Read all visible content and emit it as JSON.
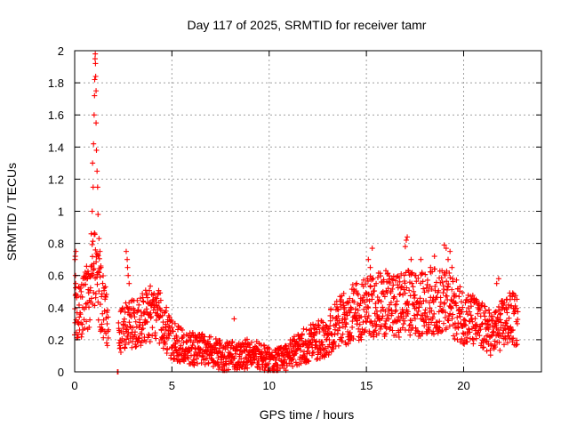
{
  "chart_data": {
    "type": "scatter",
    "title": "Day 117 of 2025, SRMTID for receiver tamr",
    "xlabel": "GPS time / hours",
    "ylabel": "SRMTID / TECUs",
    "xlim": [
      0,
      24
    ],
    "ylim": [
      0,
      2
    ],
    "grid": true,
    "legend": "none",
    "xticks": [
      0,
      5,
      10,
      15,
      20
    ],
    "xtick_labels": [
      "0",
      "5",
      "10",
      "15",
      "20"
    ],
    "yticks": [
      0,
      0.2,
      0.4,
      0.6,
      0.8,
      1,
      1.2,
      1.4,
      1.6,
      1.8,
      2
    ],
    "ytick_labels": [
      "0",
      "0.2",
      "0.4",
      "0.6",
      "0.8",
      "1",
      "1.2",
      "1.4",
      "1.6",
      "1.8",
      "2"
    ],
    "series": [
      {
        "name": "SRMTID",
        "color": "#ff0000",
        "marker": "plus",
        "profile_x": [
          0,
          0.3,
          0.7,
          1.0,
          1.3,
          1.7,
          2.3,
          2.8,
          3.4,
          4.0,
          4.5,
          5.0,
          6.0,
          7.0,
          7.7,
          8.3,
          9.0,
          9.7,
          10.2,
          10.8,
          11.5,
          12.3,
          13.0,
          13.5,
          14.0,
          14.5,
          15.0,
          15.5,
          16.0,
          16.5,
          17.0,
          17.5,
          18.0,
          18.5,
          19.0,
          19.5,
          20.0,
          20.5,
          21.0,
          21.5,
          22.0,
          22.5,
          22.8
        ],
        "profile_y": [
          0.35,
          0.38,
          0.45,
          0.6,
          0.45,
          0.3,
          0.25,
          0.28,
          0.3,
          0.35,
          0.3,
          0.18,
          0.13,
          0.12,
          0.08,
          0.1,
          0.1,
          0.08,
          0.05,
          0.08,
          0.13,
          0.18,
          0.22,
          0.28,
          0.32,
          0.36,
          0.38,
          0.4,
          0.4,
          0.38,
          0.42,
          0.4,
          0.4,
          0.42,
          0.42,
          0.38,
          0.33,
          0.3,
          0.26,
          0.22,
          0.28,
          0.32,
          0.28
        ],
        "spike_x": [
          0.02,
          0.03,
          0.04,
          0.05,
          0.06,
          0.85,
          0.9,
          0.92,
          0.95,
          0.97,
          1.0,
          1.02,
          1.03,
          1.05,
          1.06,
          1.07,
          1.08,
          1.1,
          1.1,
          1.12,
          1.15,
          1.18,
          1.2,
          1.25,
          1.3,
          1.35,
          2.65,
          2.7,
          2.72,
          2.75,
          2.8,
          8.2,
          15.1,
          15.2,
          15.3,
          15.5,
          16.0,
          16.2,
          17.0,
          17.05,
          17.1,
          17.3,
          17.5,
          17.8,
          18.3,
          18.5,
          19.0,
          19.1,
          19.2,
          19.3,
          19.4,
          21.6,
          21.7,
          21.8,
          22.2,
          22.3
        ],
        "spike_y": [
          0.7,
          0.72,
          0.6,
          0.55,
          0.75,
          0.86,
          1.0,
          1.3,
          1.15,
          1.42,
          1.6,
          1.72,
          1.82,
          1.95,
          1.98,
          1.92,
          1.84,
          1.75,
          1.55,
          1.38,
          1.25,
          1.15,
          0.98,
          0.83,
          0.75,
          0.65,
          0.75,
          0.7,
          0.65,
          0.6,
          0.55,
          0.33,
          0.7,
          0.65,
          0.77,
          0.55,
          0.63,
          0.58,
          0.78,
          0.82,
          0.84,
          0.7,
          0.6,
          0.7,
          0.65,
          0.72,
          0.79,
          0.77,
          0.7,
          0.75,
          0.65,
          0.3,
          0.55,
          0.58,
          0.45,
          0.4
        ],
        "zero_x": [
          2.2,
          2.23
        ],
        "zero_y": [
          0,
          0
        ]
      }
    ]
  }
}
